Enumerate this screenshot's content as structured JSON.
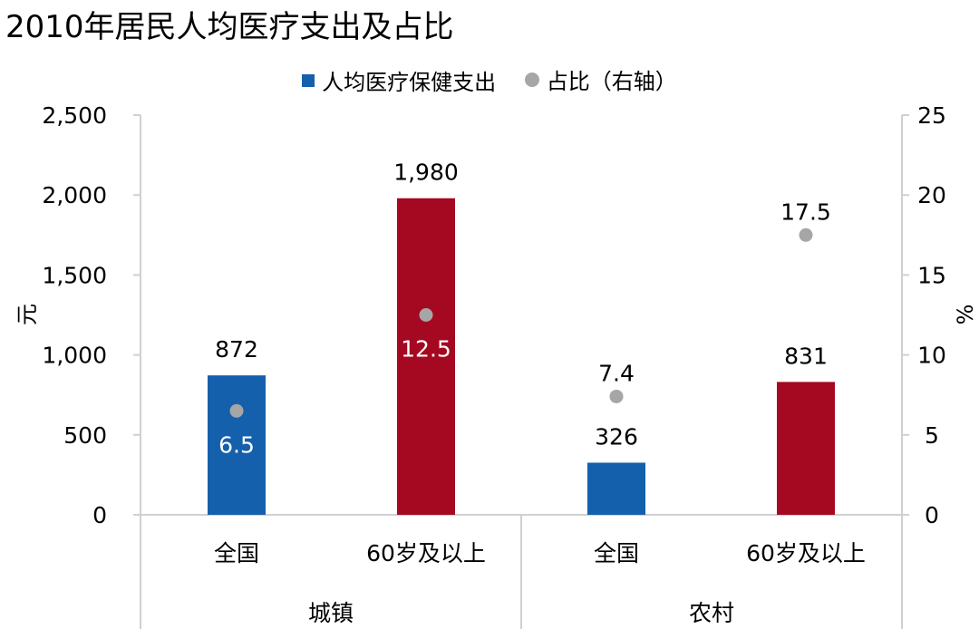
{
  "chart_data": {
    "type": "bar",
    "title": "2010年居民人均医疗支出及占比",
    "groups": [
      {
        "label": "城镇",
        "categories": [
          "全国",
          "60岁及以上"
        ]
      },
      {
        "label": "农村",
        "categories": [
          "全国",
          "60岁及以上"
        ]
      }
    ],
    "categories": [
      "全国",
      "60岁及以上",
      "全国",
      "60岁及以上"
    ],
    "series": [
      {
        "name": "人均医疗保健支出",
        "type": "bar",
        "axis": "left",
        "values": [
          872,
          1980,
          326,
          831
        ],
        "labels": [
          "872",
          "1,980",
          "326",
          "831"
        ]
      },
      {
        "name": "占比（右轴）",
        "type": "scatter",
        "axis": "right",
        "values": [
          6.5,
          12.5,
          7.4,
          17.5
        ],
        "labels": [
          "6.5",
          "12.5",
          "7.4",
          "17.5"
        ]
      }
    ],
    "ylabel": "元",
    "ylabel_right": "%",
    "ylim": [
      0,
      2500
    ],
    "ylim_right": [
      0,
      25
    ],
    "yticks": [
      "0",
      "500",
      "1,000",
      "1,500",
      "2,000",
      "2,500"
    ],
    "yticks_right": [
      "0",
      "5",
      "10",
      "15",
      "20",
      "25"
    ],
    "legend_position": "top",
    "grid": false,
    "colors": {
      "bar_all": "#1560ac",
      "bar_60plus": "#a50821",
      "dot": "#a6a6a6",
      "axis": "#d0d0d0"
    }
  }
}
